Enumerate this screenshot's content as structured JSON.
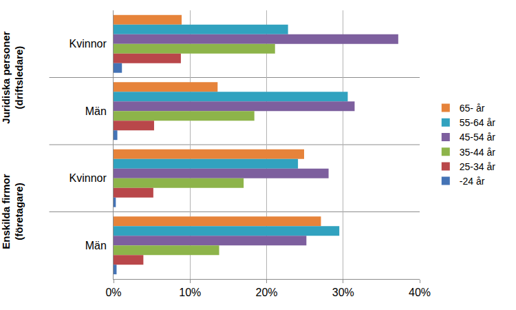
{
  "chart_data": {
    "type": "bar",
    "orientation": "horizontal",
    "categories": [
      [
        "Juridiska personer (driftsledare)",
        "Kvinnor"
      ],
      [
        "Juridiska personer (driftsledare)",
        "Män"
      ],
      [
        "Enskilda firmor (företagare)",
        "Kvinnor"
      ],
      [
        "Enskilda firmor (företagare)",
        "Män"
      ]
    ],
    "series": [
      {
        "name": "65- år",
        "color": "#E6833A",
        "values": [
          8.9,
          13.6,
          24.9,
          27.1
        ]
      },
      {
        "name": "55-64 år",
        "color": "#31A2BF",
        "values": [
          22.8,
          30.6,
          24.1,
          29.5
        ]
      },
      {
        "name": "45-54 år",
        "color": "#7D5F9E",
        "values": [
          37.2,
          31.5,
          28.1,
          25.2
        ]
      },
      {
        "name": "35-44 år",
        "color": "#8DB44A",
        "values": [
          21.1,
          18.4,
          17.0,
          13.8
        ]
      },
      {
        "name": "25-34 år",
        "color": "#B9474A",
        "values": [
          8.8,
          5.3,
          5.2,
          3.9
        ]
      },
      {
        "name": "-24 år",
        "color": "#4473B5",
        "values": [
          1.1,
          0.5,
          0.3,
          0.4
        ]
      }
    ],
    "xlim": [
      0,
      40
    ],
    "xticks": [
      {
        "value": 0,
        "label": "0%"
      },
      {
        "value": 10,
        "label": "10%"
      },
      {
        "value": 20,
        "label": "20%"
      },
      {
        "value": 30,
        "label": "30%"
      },
      {
        "value": 40,
        "label": "40%"
      }
    ],
    "grid": true,
    "legend": "right"
  }
}
